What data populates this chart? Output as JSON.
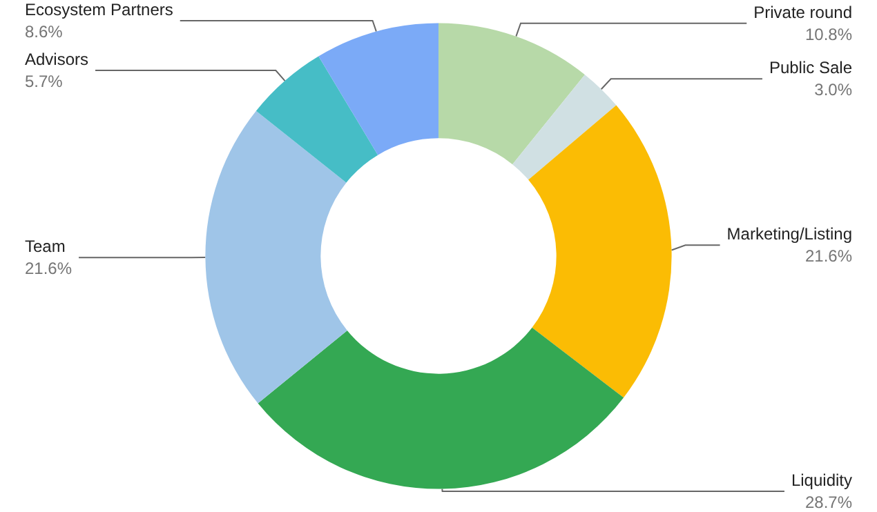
{
  "chart_data": {
    "type": "donut",
    "categories": [
      "Private round",
      "Public Sale",
      "Marketing/Listing",
      "Liquidity",
      "Team",
      "Advisors",
      "Ecosystem Partners"
    ],
    "values": [
      10.8,
      3.0,
      21.6,
      28.7,
      21.6,
      5.7,
      8.6
    ],
    "value_labels": [
      "10.8%",
      "3.0%",
      "21.6%",
      "28.7%",
      "21.6%",
      "5.7%",
      "8.6%"
    ],
    "colors": [
      "#b7d9a8",
      "#d0e0e3",
      "#fbbc04",
      "#34a853",
      "#9fc5e8",
      "#46bdc6",
      "#7baaf7"
    ],
    "legend": false
  }
}
